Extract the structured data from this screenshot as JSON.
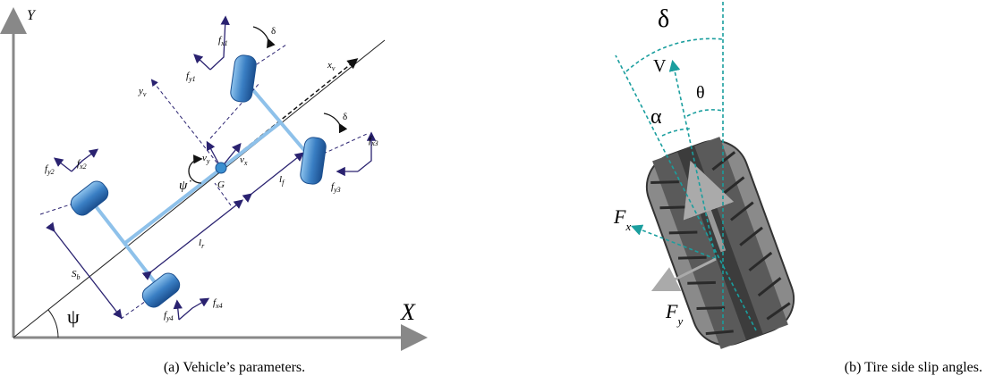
{
  "figure_a": {
    "axis_y": "Y",
    "axis_x": "X",
    "angle_psi": "ψ",
    "x_v": {
      "main": "x",
      "sub": "v"
    },
    "y_v": {
      "main": "y",
      "sub": "v"
    },
    "f_x1": {
      "main": "f",
      "sub": "x1"
    },
    "f_y1": {
      "main": "f",
      "sub": "y1"
    },
    "f_x2": {
      "main": "f",
      "sub": "x2"
    },
    "f_y2": {
      "main": "f",
      "sub": "y2"
    },
    "f_x3": {
      "main": "f",
      "sub": "x3"
    },
    "f_y3": {
      "main": "f",
      "sub": "y3"
    },
    "f_x4": {
      "main": "f",
      "sub": "x4"
    },
    "f_y4": {
      "main": "f",
      "sub": "y4"
    },
    "delta_front_left": "δ",
    "delta_front_right": "δ",
    "v_x": {
      "main": "v",
      "sub": "x"
    },
    "v_y": {
      "main": "v",
      "sub": "y"
    },
    "yaw_rate": "ψ̇",
    "cog": "G",
    "l_f": {
      "main": "l",
      "sub": "f"
    },
    "l_r": {
      "main": "l",
      "sub": "r"
    },
    "s_b": {
      "main": "S",
      "sub": "b"
    },
    "caption": "(a) Vehicle’s parameters."
  },
  "figure_b": {
    "delta": "δ",
    "velocity": "V",
    "theta": "θ",
    "alpha": "α",
    "f_x": {
      "main": "F",
      "sub": "x"
    },
    "f_y": {
      "main": "F",
      "sub": "y"
    },
    "caption": "(b) Tire side slip angles."
  }
}
